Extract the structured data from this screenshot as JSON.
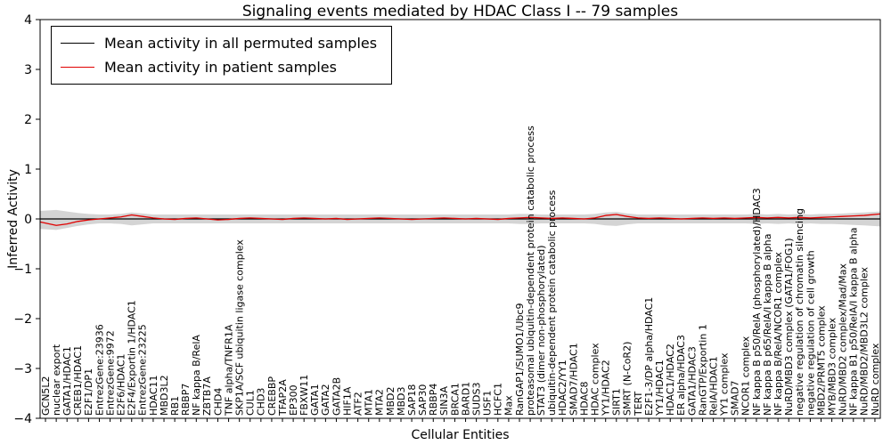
{
  "figure": {
    "title": "Signaling events mediated by HDAC Class I -- 79 samples",
    "xlabel": "Cellular Entities",
    "ylabel": "Inferred Activity"
  },
  "legend": {
    "items": [
      {
        "label": "Mean activity in all permuted samples",
        "color": "#000000"
      },
      {
        "label": "Mean activity in patient samples",
        "color": "#e00000"
      }
    ]
  },
  "chart_data": {
    "type": "line",
    "title": "Signaling events mediated by HDAC Class I -- 79 samples",
    "xlabel": "Cellular Entities",
    "ylabel": "Inferred Activity",
    "ylim": [
      -4,
      4
    ],
    "yticks": [
      -4,
      -3,
      -2,
      -1,
      0,
      1,
      2,
      3,
      4
    ],
    "grid": false,
    "legend_position": "upper left",
    "categories": [
      "GCN5L2",
      "nuclear export",
      "GATA1/HDAC1",
      "CREB1/HDAC1",
      "E2F1/DP1",
      "EntrezGene:23936",
      "EntrezGene:9972",
      "E2F6/HDAC1",
      "E2F4/Exportin 1/HDAC1",
      "EntrezGene:23225",
      "HDAC11",
      "MBD3L2",
      "RB1",
      "RBBP7",
      "NF kappa B/RelA",
      "ZBTB7A",
      "CHD4",
      "TNF alpha/TNFR1A",
      "SKP1A/SCF ubiquitin ligase complex",
      "CUL1",
      "CHD3",
      "CREBBP",
      "TFAP2A",
      "EP300",
      "FBXW11",
      "GATA1",
      "GATA2",
      "GATA2B",
      "HIF1A",
      "ATF2",
      "MTA1",
      "MTA2",
      "MBD2",
      "MBD3",
      "SAP18",
      "SAP30",
      "RBBP4",
      "SIN3A",
      "BRCA1",
      "BARD1",
      "SUDS3",
      "USF1",
      "HCFC1",
      "Max",
      "RanGAP1/SUMO1/Ubc9",
      "proteasomal ubiquitin-dependent protein catabolic process",
      "STAT3 (dimer non-phosphorylated)",
      "ubiquitin-dependent protein catabolic process",
      "HDAC2/YY1",
      "SMAD7/HDAC1",
      "HDAC8",
      "HDAC complex",
      "YY1/HDAC2",
      "SIRT1",
      "SMRT (N-CoR2)",
      "TERT",
      "E2F1-3/DP alpha/HDAC1",
      "YY1/HDAC1",
      "HDAC1/HDAC2",
      "ER alpha/HDAC3",
      "GATA1/HDAC3",
      "RanGTP/Exportin 1",
      "RelA/HDAC1",
      "YY1 complex",
      "SMAD7",
      "NCOR1 complex",
      "NF kappa B p50/RelA (phosphorylated)/HDAC3",
      "NF kappa B p65/RelA/I kappa B alpha",
      "NF kappa B/RelA/NCOR1 complex",
      "NuRD/MBD3 complex (GATA1/FOG1)",
      "negative regulation of chromatin silencing",
      "negative regulation of cell growth",
      "MBD2/PRMT5 complex",
      "MYB/MBD3 complex",
      "NuRD/MBD2 complex/Mad/Max",
      "NF kappa B1 p50/RelA/I kappa B alpha",
      "NuRD/MBD2/MBD3L2 complex",
      "NuRD complex"
    ],
    "series": [
      {
        "name": "Mean activity in all permuted samples",
        "color": "#000000",
        "constant": 0
      },
      {
        "name": "Mean activity in patient samples",
        "color": "#e00000",
        "values": [
          -0.06,
          -0.13,
          -0.1,
          -0.05,
          -0.02,
          0.0,
          0.02,
          0.04,
          0.08,
          0.05,
          0.02,
          0.0,
          -0.01,
          0.01,
          0.02,
          0.0,
          -0.02,
          -0.01,
          0.01,
          0.02,
          0.01,
          0.0,
          -0.01,
          0.01,
          0.02,
          0.01,
          0.0,
          0.01,
          -0.01,
          0.0,
          0.01,
          0.02,
          0.01,
          0.0,
          -0.01,
          0.0,
          0.01,
          0.02,
          0.01,
          0.0,
          0.01,
          0.0,
          -0.01,
          0.01,
          0.02,
          0.03,
          0.02,
          0.01,
          0.02,
          0.01,
          0.0,
          0.02,
          0.07,
          0.09,
          0.05,
          0.02,
          0.01,
          0.02,
          0.01,
          0.0,
          0.01,
          0.02,
          0.01,
          0.02,
          0.01,
          0.02,
          0.03,
          0.02,
          0.03,
          0.02,
          0.03,
          0.02,
          0.03,
          0.04,
          0.05,
          0.06,
          0.07,
          0.1
        ]
      }
    ],
    "band": {
      "name": "permuted samples spread",
      "color": "#cfcfcf",
      "upper": [
        0.16,
        0.18,
        0.15,
        0.12,
        0.1,
        0.09,
        0.09,
        0.1,
        0.13,
        0.11,
        0.09,
        0.09,
        0.09,
        0.09,
        0.09,
        0.09,
        0.09,
        0.09,
        0.09,
        0.09,
        0.09,
        0.09,
        0.09,
        0.09,
        0.09,
        0.09,
        0.09,
        0.09,
        0.09,
        0.09,
        0.09,
        0.09,
        0.09,
        0.09,
        0.09,
        0.09,
        0.09,
        0.09,
        0.09,
        0.09,
        0.09,
        0.09,
        0.09,
        0.09,
        0.1,
        0.1,
        0.09,
        0.09,
        0.09,
        0.09,
        0.09,
        0.1,
        0.13,
        0.14,
        0.11,
        0.09,
        0.09,
        0.09,
        0.09,
        0.09,
        0.09,
        0.09,
        0.09,
        0.09,
        0.09,
        0.09,
        0.1,
        0.09,
        0.1,
        0.09,
        0.1,
        0.09,
        0.1,
        0.1,
        0.11,
        0.12,
        0.13,
        0.15
      ],
      "lower": [
        -0.2,
        -0.22,
        -0.18,
        -0.14,
        -0.11,
        -0.09,
        -0.09,
        -0.1,
        -0.13,
        -0.11,
        -0.09,
        -0.09,
        -0.09,
        -0.09,
        -0.09,
        -0.09,
        -0.09,
        -0.09,
        -0.09,
        -0.09,
        -0.09,
        -0.09,
        -0.09,
        -0.09,
        -0.09,
        -0.09,
        -0.09,
        -0.09,
        -0.09,
        -0.09,
        -0.09,
        -0.09,
        -0.09,
        -0.09,
        -0.09,
        -0.09,
        -0.09,
        -0.09,
        -0.09,
        -0.09,
        -0.09,
        -0.09,
        -0.09,
        -0.09,
        -0.1,
        -0.1,
        -0.09,
        -0.09,
        -0.09,
        -0.09,
        -0.09,
        -0.1,
        -0.13,
        -0.14,
        -0.11,
        -0.09,
        -0.09,
        -0.09,
        -0.09,
        -0.09,
        -0.09,
        -0.09,
        -0.09,
        -0.09,
        -0.09,
        -0.09,
        -0.1,
        -0.09,
        -0.1,
        -0.09,
        -0.1,
        -0.09,
        -0.1,
        -0.1,
        -0.11,
        -0.12,
        -0.13,
        -0.15
      ]
    }
  }
}
